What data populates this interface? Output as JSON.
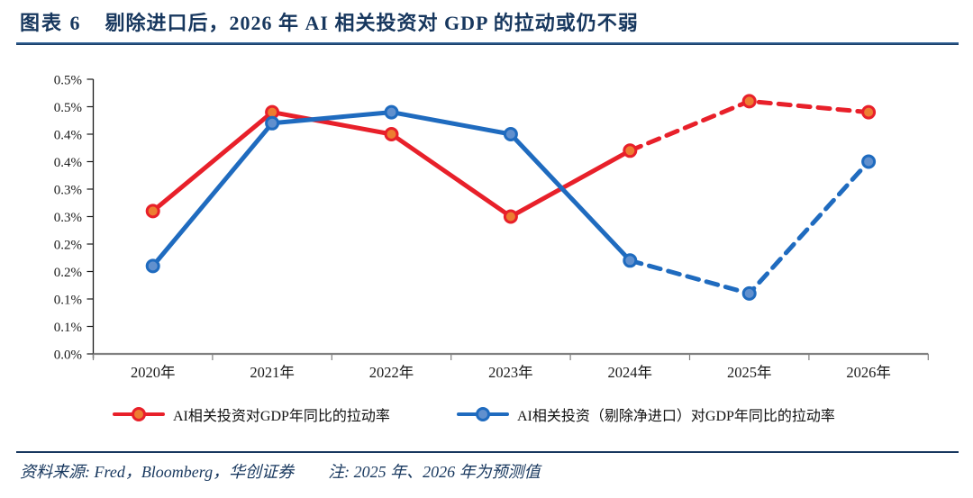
{
  "header": {
    "figure_label": "图表 6",
    "title": "剔除进口后，2026 年 AI 相关投资对 GDP 的拉动或仍不弱"
  },
  "footer": {
    "source": "资料来源: Fred，Bloomberg，华创证券",
    "note": "注: 2025 年、2026 年为预测值"
  },
  "legend": {
    "items": [
      {
        "label": "AI相关投资对GDP年同比的拉动率"
      },
      {
        "label": "AI相关投资（剔除净进口）对GDP年同比的拉动率"
      }
    ]
  },
  "colors": {
    "title_navy": "#17375E",
    "red_line": "#E8202A",
    "red_marker_fill": "#ED7D31",
    "blue_line": "#1F6BBF",
    "blue_marker_fill": "#6190CE",
    "baseline_gray": "#808080",
    "axis_black": "#1A1A1A"
  },
  "chart_data": {
    "type": "line",
    "title": "剔除进口后，2026 年 AI 相关投资对 GDP 的拉动或仍不弱",
    "categories": [
      "2020年",
      "2021年",
      "2022年",
      "2023年",
      "2024年",
      "2025年",
      "2026年"
    ],
    "series": [
      {
        "name": "AI相关投资对GDP年同比的拉动率",
        "color": "#E8202A",
        "marker_fill": "#ED7D31",
        "values": [
          0.26,
          0.44,
          0.4,
          0.25,
          0.37,
          0.46,
          0.44
        ],
        "forecast_from_index": 4,
        "forecast_style": "dashed"
      },
      {
        "name": "AI相关投资（剔除净进口）对GDP年同比的拉动率",
        "color": "#1F6BBF",
        "marker_fill": "#6190CE",
        "values": [
          0.16,
          0.42,
          0.44,
          0.4,
          0.17,
          0.11,
          0.35
        ],
        "forecast_from_index": 4,
        "forecast_style": "dashed"
      }
    ],
    "unit": "%",
    "ylim": [
      0,
      0.5
    ],
    "y_tick_step": 0.05,
    "y_tick_labels": [
      "0.5%",
      "0.5%",
      "0.4%",
      "0.4%",
      "0.3%",
      "0.3%",
      "0.2%",
      "0.2%",
      "0.1%",
      "0.1%",
      "0.0%"
    ],
    "grid": false,
    "legend_position": "bottom"
  }
}
